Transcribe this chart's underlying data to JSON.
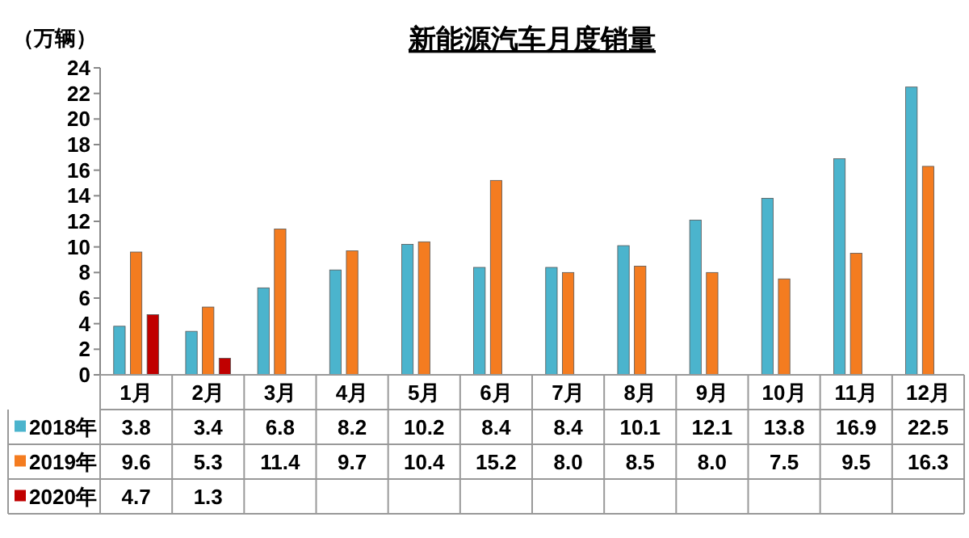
{
  "chart_data": {
    "type": "bar",
    "title": "新能源汽车月度销量",
    "ylabel": "（万辆）",
    "categories": [
      "1月",
      "2月",
      "3月",
      "4月",
      "5月",
      "6月",
      "7月",
      "8月",
      "9月",
      "10月",
      "11月",
      "12月"
    ],
    "series": [
      {
        "name": "2018年",
        "color": "#4bb4cd",
        "values": [
          3.8,
          3.4,
          6.8,
          8.2,
          10.2,
          8.4,
          8.4,
          10.1,
          12.1,
          13.8,
          16.9,
          22.5
        ],
        "value_labels": [
          "3.8",
          "3.4",
          "6.8",
          "8.2",
          "10.2",
          "8.4",
          "8.4",
          "10.1",
          "12.1",
          "13.8",
          "16.9",
          "22.5"
        ]
      },
      {
        "name": "2019年",
        "color": "#f47c20",
        "values": [
          9.6,
          5.3,
          11.4,
          9.7,
          10.4,
          15.2,
          8.0,
          8.5,
          8.0,
          7.5,
          9.5,
          16.3
        ],
        "value_labels": [
          "9.6",
          "5.3",
          "11.4",
          "9.7",
          "10.4",
          "15.2",
          "8.0",
          "8.5",
          "8.0",
          "7.5",
          "9.5",
          "16.3"
        ]
      },
      {
        "name": "2020年",
        "color": "#c00000",
        "values": [
          4.7,
          1.3,
          null,
          null,
          null,
          null,
          null,
          null,
          null,
          null,
          null,
          null
        ],
        "value_labels": [
          "4.7",
          "1.3",
          null,
          null,
          null,
          null,
          null,
          null,
          null,
          null,
          null,
          null
        ]
      }
    ],
    "ylim": [
      0,
      24
    ],
    "yticks": [
      0,
      2,
      4,
      6,
      8,
      10,
      12,
      14,
      16,
      18,
      20,
      22,
      24
    ],
    "legend": "bottom",
    "grid": false
  }
}
